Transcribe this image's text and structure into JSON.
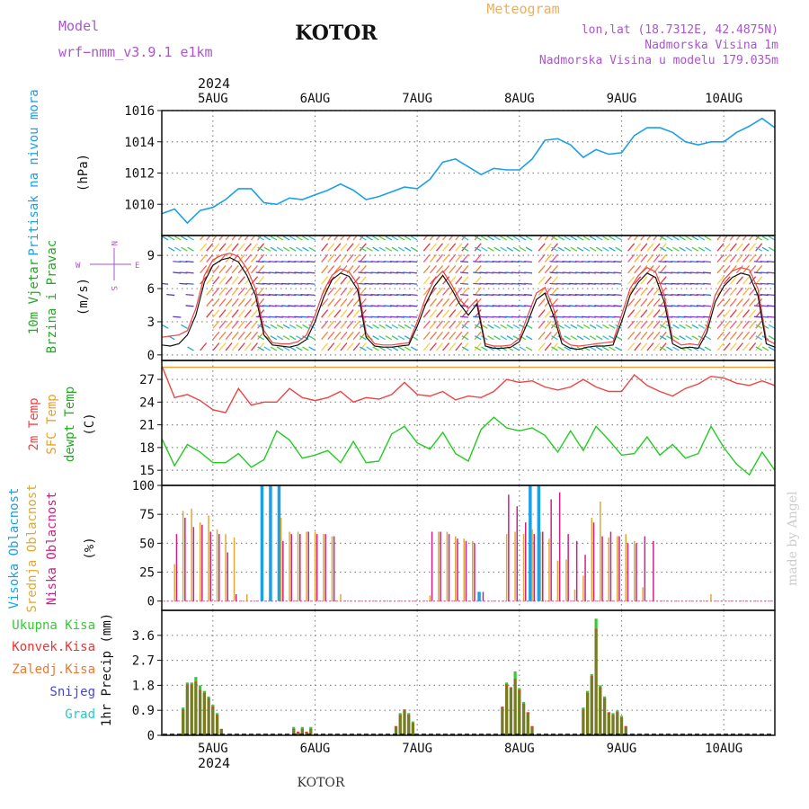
{
  "header": {
    "model_label": "Model",
    "model_value": "wrf−nmm_v3.9.1  e1km",
    "station": "KOTOR",
    "meteogram_label": "Meteogram",
    "lonlat": "lon,lat (18.7312E, 42.4875N)",
    "elevation": "Nadmorska Visina 1m",
    "model_elevation": "Nadmorska Visina u modelu 179.035m",
    "year_top": "2024",
    "year_bottom": "2024",
    "footer_station": "KOTOR",
    "credit": "made by Angel"
  },
  "colors": {
    "pressure": "#1ca0e6",
    "temp2m": "#ee4444",
    "sfc_temp": "#f0a030",
    "dewpoint": "#22cc22",
    "wind_speed": "#111111",
    "high_cloud": "#1ca0e6",
    "mid_cloud": "#ddaa33",
    "low_cloud": "#cc2288",
    "total_precip": "#33cc33",
    "conv_precip": "#ee3333",
    "frozen_precip": "#ee7733",
    "snow": "#4444dd",
    "graupel": "#22cccc",
    "grid": "#888888",
    "label_purple": "#aa55cc",
    "label_orange": "#e8b060"
  },
  "chart_data": [
    {
      "type": "line",
      "panel": "pressure",
      "x_unit": "hours from 2024-08-05 00:00",
      "xlim": [
        -12,
        132
      ],
      "ticks_x": [
        0,
        24,
        48,
        72,
        96,
        120
      ],
      "tick_labels_x": [
        "5AUG",
        "6AUG",
        "7AUG",
        "8AUG",
        "9AUG",
        "10AUG"
      ],
      "ylabel_lines": [
        "Pritisak na nivou mora",
        "(hPa)"
      ],
      "ylim": [
        1008,
        1016
      ],
      "yticks": [
        1010,
        1012,
        1014,
        1016
      ],
      "grid": true,
      "x": [
        -12,
        -9,
        -6,
        -3,
        0,
        3,
        6,
        9,
        12,
        15,
        18,
        21,
        24,
        27,
        30,
        33,
        36,
        39,
        42,
        45,
        48,
        51,
        54,
        57,
        60,
        63,
        66,
        69,
        72,
        75,
        78,
        81,
        84,
        87,
        90,
        93,
        96,
        99,
        102,
        105,
        108,
        111,
        114,
        117,
        120,
        123,
        126,
        129,
        132
      ],
      "series": [
        {
          "name": "",
          "values": [
            1009.4,
            1009.7,
            1008.8,
            1009.6,
            1009.8,
            1010.3,
            1011.0,
            1011.0,
            1010.1,
            1010.0,
            1010.4,
            1010.3,
            1010.6,
            1010.9,
            1011.3,
            1010.9,
            1010.3,
            1010.5,
            1010.8,
            1011.1,
            1011.0,
            1011.6,
            1012.7,
            1012.9,
            1012.4,
            1011.9,
            1012.3,
            1012.2,
            1012.2,
            1012.9,
            1014.1,
            1014.2,
            1013.8,
            1013.0,
            1013.5,
            1013.2,
            1013.3,
            1014.4,
            1014.9,
            1014.9,
            1014.6,
            1014.0,
            1013.8,
            1014.0,
            1014.0,
            1014.6,
            1015.0,
            1015.5,
            1014.9
          ]
        }
      ]
    },
    {
      "type": "line",
      "panel": "wind",
      "x_unit": "hours from 2024-08-05 00:00",
      "xlim": [
        -12,
        132
      ],
      "ylabel_lines": [
        "10m Vjetar",
        "Brzina i Pravac",
        "(m/s)"
      ],
      "direction_legend": [
        "N",
        "E",
        "W",
        "S"
      ],
      "ylim": [
        -0.5,
        10.8
      ],
      "yticks": [
        0,
        3,
        6,
        9
      ],
      "grid": true,
      "x": [
        -12,
        -10,
        -8,
        -6,
        -4,
        -2,
        0,
        2,
        4,
        6,
        8,
        10,
        12,
        14,
        16,
        18,
        20,
        22,
        24,
        26,
        28,
        30,
        32,
        34,
        36,
        38,
        40,
        42,
        44,
        46,
        48,
        50,
        52,
        54,
        56,
        58,
        60,
        62,
        64,
        66,
        68,
        70,
        72,
        74,
        76,
        78,
        80,
        82,
        84,
        86,
        88,
        90,
        92,
        94,
        96,
        98,
        100,
        102,
        104,
        106,
        108,
        110,
        112,
        114,
        116,
        118,
        120,
        122,
        124,
        126,
        128,
        130,
        132
      ],
      "series": [
        {
          "name": "",
          "values": [
            0.9,
            0.8,
            1.0,
            1.8,
            3.6,
            6.6,
            8.1,
            8.6,
            8.8,
            8.4,
            7.2,
            5.4,
            1.8,
            0.9,
            0.8,
            0.7,
            0.9,
            1.4,
            3.0,
            5.2,
            6.8,
            7.4,
            7.1,
            5.9,
            1.6,
            0.8,
            0.7,
            0.7,
            0.8,
            0.9,
            2.6,
            4.6,
            6.2,
            7.2,
            6.0,
            4.6,
            3.6,
            4.6,
            0.8,
            0.6,
            0.6,
            0.7,
            1.2,
            3.0,
            5.0,
            5.6,
            3.6,
            1.0,
            0.6,
            0.5,
            0.7,
            0.8,
            0.8,
            0.9,
            3.0,
            5.4,
            6.6,
            7.4,
            7.0,
            4.8,
            1.0,
            0.6,
            0.7,
            0.6,
            2.0,
            4.8,
            6.2,
            7.0,
            7.4,
            7.2,
            5.4,
            1.0,
            0.7
          ]
        },
        {
          "name": "",
          "values": [
            1.6,
            1.7,
            1.8,
            2.2,
            4.2,
            7.2,
            8.6,
            9.0,
            9.2,
            8.9,
            7.8,
            6.0,
            2.2,
            1.1,
            1.0,
            1.0,
            1.2,
            1.8,
            3.6,
            5.8,
            7.2,
            7.8,
            7.5,
            6.4,
            2.0,
            1.0,
            0.9,
            0.9,
            1.0,
            1.1,
            3.0,
            5.2,
            6.8,
            7.6,
            6.4,
            5.0,
            4.2,
            5.0,
            1.0,
            0.8,
            0.8,
            0.9,
            1.5,
            3.6,
            5.6,
            6.1,
            4.2,
            1.4,
            0.9,
            0.8,
            0.9,
            1.0,
            1.1,
            1.2,
            3.6,
            6.0,
            7.2,
            7.9,
            7.5,
            5.4,
            1.4,
            0.9,
            1.0,
            0.9,
            2.5,
            5.4,
            6.8,
            7.6,
            7.9,
            7.7,
            6.0,
            1.4,
            1.0
          ]
        }
      ]
    },
    {
      "type": "line",
      "panel": "temperature",
      "x_unit": "hours from 2024-08-05 00:00",
      "xlim": [
        -12,
        132
      ],
      "ylabel_lines": [
        "2m Temp",
        "SFC Temp",
        "dewpt Temp",
        "(C)"
      ],
      "ylim": [
        13,
        29.5
      ],
      "yticks": [
        15,
        18,
        21,
        24,
        27
      ],
      "grid": true,
      "x": [
        -12,
        -9,
        -6,
        -3,
        0,
        3,
        6,
        9,
        12,
        15,
        18,
        21,
        24,
        27,
        30,
        33,
        36,
        39,
        42,
        45,
        48,
        51,
        54,
        57,
        60,
        63,
        66,
        69,
        72,
        75,
        78,
        81,
        84,
        87,
        90,
        93,
        96,
        99,
        102,
        105,
        108,
        111,
        114,
        117,
        120,
        123,
        126,
        129,
        132
      ],
      "series": [
        {
          "name": "2m Temp",
          "values": [
            28.8,
            24.6,
            25.0,
            24.2,
            23.0,
            22.6,
            25.8,
            23.6,
            24.0,
            24.0,
            25.8,
            24.6,
            24.2,
            24.6,
            25.4,
            24.0,
            24.6,
            24.4,
            25.0,
            26.6,
            25.0,
            24.8,
            25.4,
            24.3,
            24.8,
            24.6,
            25.4,
            27.0,
            26.6,
            26.8,
            26.0,
            25.6,
            26.0,
            27.0,
            26.0,
            25.4,
            25.4,
            27.6,
            26.2,
            25.4,
            24.8,
            25.8,
            26.4,
            27.4,
            27.2,
            26.5,
            26.2,
            26.8,
            26.2
          ]
        },
        {
          "name": "SFC Temp",
          "values": [
            28.6,
            28.6,
            28.6,
            28.6,
            28.6,
            28.6,
            28.6,
            28.6,
            28.6,
            28.6,
            28.6,
            28.6,
            28.6,
            28.6,
            28.6,
            28.6,
            28.6,
            28.6,
            28.6,
            28.6,
            28.6,
            28.6,
            28.6,
            28.6,
            28.6,
            28.6,
            28.6,
            28.6,
            28.6,
            28.6,
            28.6,
            28.6,
            28.6,
            28.6,
            28.6,
            28.6,
            28.6,
            28.6,
            28.6,
            28.6,
            28.6,
            28.6,
            28.6,
            28.6,
            28.6,
            28.6,
            28.6,
            28.6,
            28.6
          ]
        },
        {
          "name": "dewpt Temp",
          "values": [
            19.2,
            15.6,
            18.4,
            17.4,
            16.0,
            16.0,
            17.2,
            15.4,
            16.4,
            20.2,
            19.0,
            16.6,
            17.0,
            17.6,
            16.0,
            18.8,
            16.0,
            16.2,
            19.8,
            20.8,
            18.6,
            17.8,
            20.0,
            17.2,
            16.2,
            20.4,
            22.0,
            20.6,
            20.2,
            20.6,
            19.6,
            17.4,
            20.2,
            17.6,
            20.8,
            19.0,
            17.0,
            17.2,
            19.4,
            17.0,
            18.4,
            16.6,
            17.2,
            20.8,
            18.0,
            15.8,
            14.4,
            17.4,
            15.0
          ]
        }
      ]
    },
    {
      "type": "bar",
      "panel": "cloud",
      "x_unit": "hours from 2024-08-05 00:00",
      "xlim": [
        -12,
        132
      ],
      "ylabel_lines": [
        "Visoka Oblacnost",
        "Srednja Oblacnost",
        "Niska Oblacnost",
        "(%)"
      ],
      "ylim": [
        -8,
        100
      ],
      "yticks": [
        0,
        25,
        50,
        75,
        100
      ],
      "grid": true,
      "x": [
        -9,
        -7,
        -5,
        -3,
        -1,
        1,
        3,
        5,
        8,
        12,
        14,
        16,
        18,
        20,
        22,
        24,
        26,
        28,
        30,
        31,
        51,
        53,
        55,
        57,
        59,
        61,
        63,
        69,
        71,
        73,
        75,
        77,
        79,
        81,
        83,
        85,
        87,
        89,
        91,
        93,
        95,
        97,
        99,
        101,
        103,
        104,
        117
      ],
      "series": [
        {
          "name": "Visoka Oblacnost",
          "values": [
            0,
            0,
            0,
            0,
            0,
            0,
            0,
            0,
            0,
            100,
            100,
            100,
            0,
            0,
            0,
            0,
            0,
            0,
            0,
            0,
            0,
            0,
            0,
            0,
            0,
            0,
            8,
            0,
            0,
            0,
            100,
            100,
            0,
            0,
            0,
            0,
            0,
            0,
            0,
            0,
            0,
            0,
            0,
            0,
            0,
            0,
            0
          ]
        },
        {
          "name": "Srednja Oblacnost",
          "values": [
            32,
            78,
            80,
            68,
            74,
            62,
            58,
            55,
            6,
            0,
            0,
            72,
            60,
            60,
            60,
            60,
            58,
            56,
            6,
            0,
            5,
            60,
            60,
            56,
            54,
            52,
            0,
            58,
            60,
            58,
            62,
            60,
            54,
            35,
            36,
            10,
            22,
            72,
            86,
            55,
            56,
            58,
            52,
            12,
            0,
            0,
            6
          ]
        },
        {
          "name": "Niska Oblacnost",
          "values": [
            58,
            72,
            64,
            66,
            60,
            58,
            42,
            6,
            0,
            0,
            0,
            52,
            58,
            58,
            60,
            58,
            58,
            56,
            0,
            0,
            60,
            60,
            58,
            54,
            52,
            50,
            8,
            92,
            82,
            68,
            58,
            60,
            88,
            94,
            58,
            52,
            40,
            68,
            56,
            60,
            56,
            50,
            50,
            56,
            52,
            0,
            0
          ]
        }
      ]
    },
    {
      "type": "bar",
      "panel": "precipitation",
      "x_unit": "hours from 2024-08-05 00:00",
      "xlim": [
        -12,
        132
      ],
      "ylabel_lines": [
        "1hr Precip (mm)"
      ],
      "legend_items": [
        "Ukupna Kisa",
        "Konvek.Kisa",
        "Zaledj.Kisa",
        "Snijeg",
        "Grad"
      ],
      "ylim": [
        0,
        4.5
      ],
      "yticks": [
        0,
        0.9,
        1.8,
        2.7,
        3.6
      ],
      "grid": true,
      "x": [
        -7,
        -6,
        -5,
        -4,
        -3,
        -2,
        -1,
        0,
        1,
        2,
        19,
        20,
        21,
        22,
        23,
        24,
        43,
        44,
        45,
        46,
        47,
        48,
        68,
        69,
        70,
        71,
        72,
        73,
        74,
        75,
        76,
        87,
        88,
        89,
        90,
        91,
        92,
        93,
        94,
        95,
        96,
        97
      ],
      "series": [
        {
          "name": "Ukupna Kisa",
          "values": [
            1.0,
            1.9,
            1.9,
            2.1,
            1.8,
            1.6,
            1.4,
            1.1,
            0.8,
            0.2,
            0.3,
            0.1,
            0.3,
            0.1,
            0.3,
            0.0,
            0.3,
            0.8,
            0.9,
            0.8,
            0.5,
            0.0,
            1.0,
            1.9,
            1.7,
            2.3,
            1.7,
            1.2,
            0.8,
            0.3,
            0.0,
            1.0,
            1.6,
            2.2,
            4.2,
            1.8,
            1.4,
            0.8,
            0.8,
            0.9,
            0.7,
            0.3
          ]
        },
        {
          "name": "Konvek.Kisa",
          "values": [
            0.9,
            1.8,
            1.8,
            1.9,
            1.6,
            1.5,
            1.3,
            1.0,
            0.7,
            0.2,
            0.2,
            0.1,
            0.2,
            0.1,
            0.2,
            0.0,
            0.3,
            0.7,
            0.9,
            0.7,
            0.4,
            0.0,
            1.0,
            1.8,
            1.7,
            2.0,
            1.6,
            1.1,
            0.8,
            0.3,
            0.0,
            0.9,
            1.5,
            2.1,
            3.8,
            1.7,
            1.3,
            0.8,
            0.7,
            0.8,
            0.6,
            0.3
          ]
        }
      ]
    }
  ]
}
